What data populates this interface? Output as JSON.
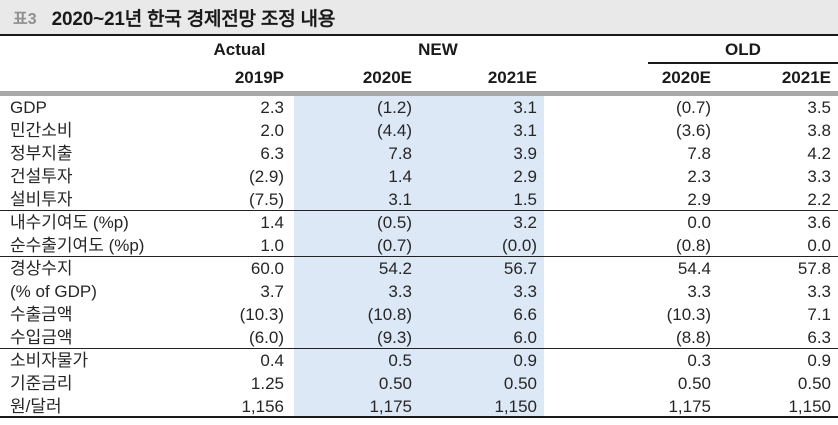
{
  "title_bar": {
    "tag": "표3",
    "title": "2020~21년 한국 경제전망 조정 내용"
  },
  "header": {
    "group_actual": "Actual",
    "group_new": "NEW",
    "group_old": "OLD",
    "columns": [
      "2019P",
      "2020E",
      "2021E",
      "2020E",
      "2021E"
    ]
  },
  "colors": {
    "highlight": "#dce8f6",
    "title_bar_bg": "#e9e9e9",
    "badge_text": "#8f8f8f",
    "thick_rule": "#a8a8a8",
    "line": "#1a1a1a"
  },
  "table": {
    "rows": [
      {
        "label": "GDP",
        "values": [
          "2.3",
          "(1.2)",
          "3.1",
          "(0.7)",
          "3.5"
        ]
      },
      {
        "label": "민간소비",
        "values": [
          "2.0",
          "(4.4)",
          "3.1",
          "(3.6)",
          "3.8"
        ]
      },
      {
        "label": "정부지출",
        "values": [
          "6.3",
          "7.8",
          "3.9",
          "7.8",
          "4.2"
        ]
      },
      {
        "label": "건설투자",
        "values": [
          "(2.9)",
          "1.4",
          "2.9",
          "2.3",
          "3.3"
        ]
      },
      {
        "label": "설비투자",
        "values": [
          "(7.5)",
          "3.1",
          "1.5",
          "2.9",
          "2.2"
        ],
        "rule_after": true
      },
      {
        "label": "내수기여도 (%p)",
        "values": [
          "1.4",
          "(0.5)",
          "3.2",
          "0.0",
          "3.6"
        ]
      },
      {
        "label": "순수출기여도 (%p)",
        "values": [
          "1.0",
          "(0.7)",
          "(0.0)",
          "(0.8)",
          "0.0"
        ],
        "rule_after": true
      },
      {
        "label": "경상수지",
        "values": [
          "60.0",
          "54.2",
          "56.7",
          "54.4",
          "57.8"
        ]
      },
      {
        "label": "(% of GDP)",
        "values": [
          "3.7",
          "3.3",
          "3.3",
          "3.3",
          "3.3"
        ]
      },
      {
        "label": "수출금액",
        "values": [
          "(10.3)",
          "(10.8)",
          "6.6",
          "(10.3)",
          "7.1"
        ]
      },
      {
        "label": "수입금액",
        "values": [
          "(6.0)",
          "(9.3)",
          "6.0",
          "(8.8)",
          "6.3"
        ],
        "rule_after": true
      },
      {
        "label": "소비자물가",
        "values": [
          "0.4",
          "0.5",
          "0.9",
          "0.3",
          "0.9"
        ]
      },
      {
        "label": "기준금리",
        "values": [
          "1.25",
          "0.50",
          "0.50",
          "0.50",
          "0.50"
        ]
      },
      {
        "label": "원/달러",
        "values": [
          "1,156",
          "1,175",
          "1,150",
          "1,175",
          "1,150"
        ]
      }
    ]
  }
}
